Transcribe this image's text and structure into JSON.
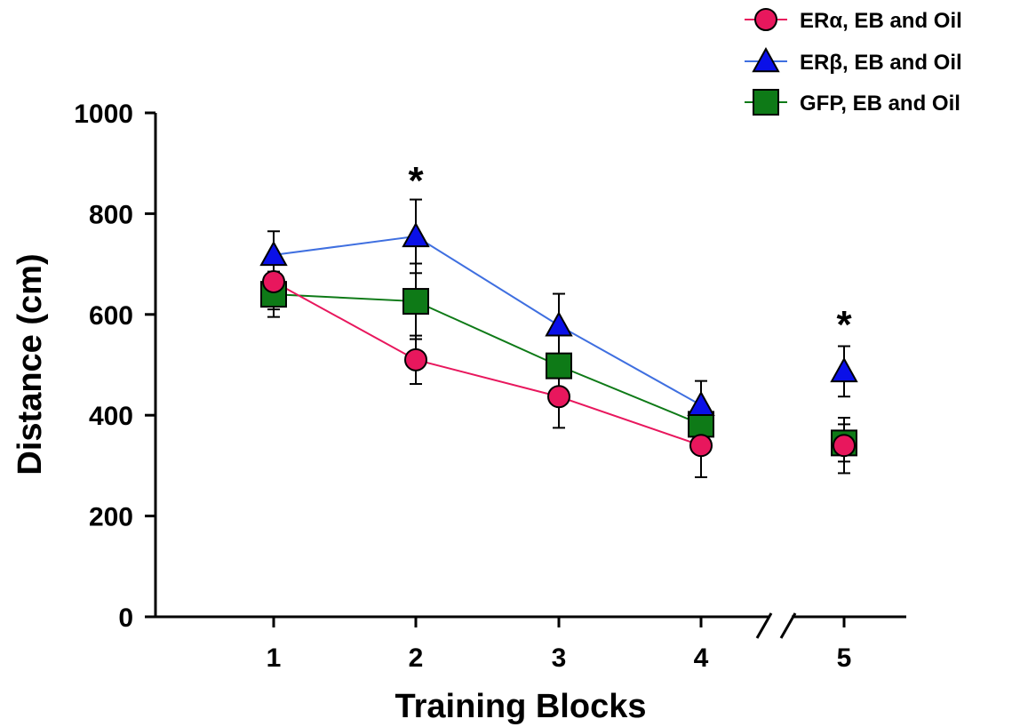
{
  "chart_data": {
    "type": "line",
    "title": "",
    "xlabel": "Training Blocks",
    "ylabel": "Distance (cm)",
    "ylim": [
      0,
      1000
    ],
    "y_ticks": [
      0,
      200,
      400,
      600,
      800,
      1000
    ],
    "categories": [
      "1",
      "2",
      "3",
      "4",
      "5"
    ],
    "axis_break_between": [
      "4",
      "5"
    ],
    "legend_position": "top-right",
    "grid": false,
    "series": [
      {
        "name": "ERα, EB and Oil",
        "marker": "circle",
        "color": "#e8175d",
        "line_color": "#e8175d",
        "values": [
          665,
          510,
          437,
          340,
          340
        ],
        "errors": [
          55,
          48,
          62,
          63,
          55
        ],
        "connected_through": "4"
      },
      {
        "name": "ERβ, EB and Oil",
        "marker": "triangle",
        "color": "#0a10e8",
        "line_color": "#3f6fe0",
        "values": [
          718,
          755,
          578,
          420,
          487
        ],
        "errors": [
          47,
          73,
          63,
          48,
          50
        ],
        "connected_through": "4"
      },
      {
        "name": "GFP, EB and Oil",
        "marker": "square",
        "color": "#0e7a17",
        "line_color": "#0e7a17",
        "values": [
          640,
          626,
          498,
          382,
          345
        ],
        "errors": [
          45,
          75,
          65,
          40,
          37
        ],
        "connected_through": "4"
      }
    ],
    "annotations": [
      {
        "text": "*",
        "category": "2",
        "y": 885
      },
      {
        "text": "*",
        "category": "5",
        "y": 600
      }
    ]
  }
}
